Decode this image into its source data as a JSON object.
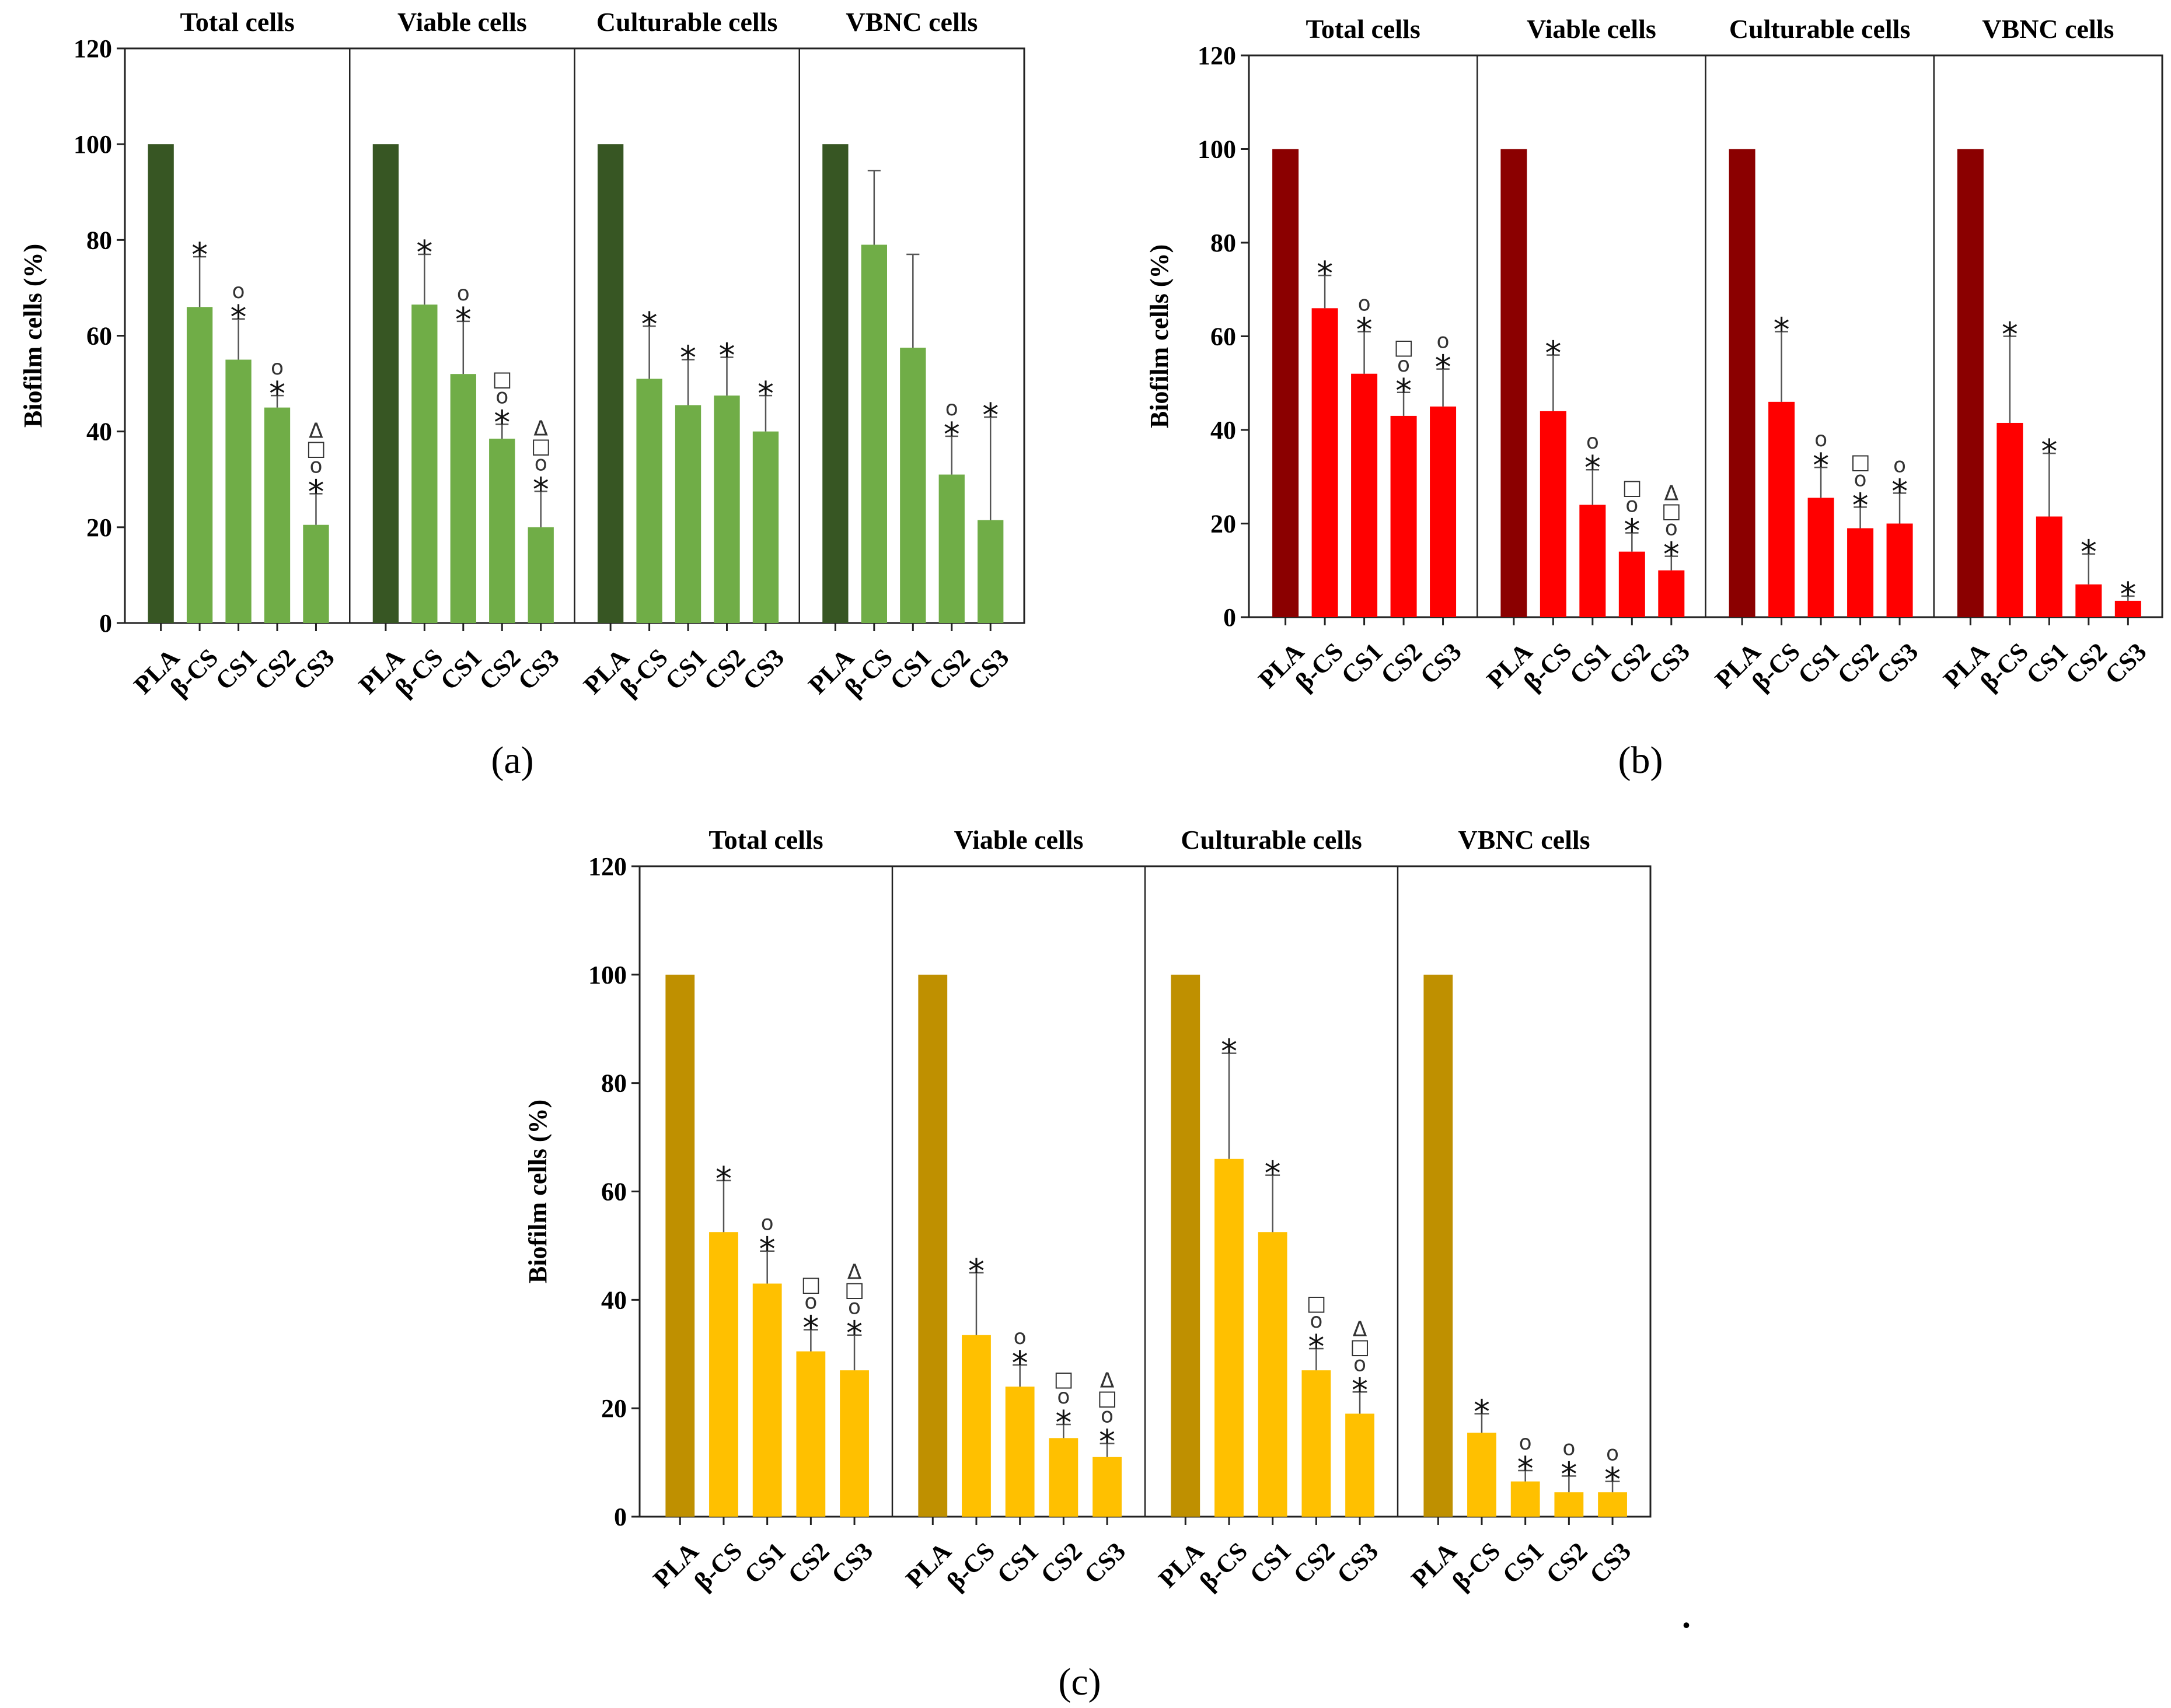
{
  "chart_data": [
    {
      "type": "bar",
      "panel_label": "(a)",
      "ylabel": "Biofilm cells (%)",
      "ylim": [
        0,
        120
      ],
      "yticks": [
        0,
        20,
        40,
        60,
        80,
        100,
        120
      ],
      "categories": [
        "PLA",
        "β-CS",
        "CS1",
        "CS2",
        "CS3"
      ],
      "colors": {
        "control": "#375623",
        "treated": "#70ad47"
      },
      "facets": [
        {
          "title": "Total cells",
          "values": [
            100,
            66,
            55,
            45,
            20.5
          ],
          "error_upper": [
            100,
            76.5,
            63.5,
            47.5,
            27
          ],
          "annotations": [
            [],
            [
              "*"
            ],
            [
              "o",
              "*"
            ],
            [
              "o",
              "*"
            ],
            [
              "Δ",
              "□",
              "o",
              "*"
            ]
          ]
        },
        {
          "title": "Viable cells",
          "values": [
            100,
            66.5,
            52,
            38.5,
            20
          ],
          "error_upper": [
            100,
            77,
            63,
            41.5,
            27.5
          ],
          "annotations": [
            [],
            [
              "*"
            ],
            [
              "o",
              "*"
            ],
            [
              "□",
              "o",
              "*"
            ],
            [
              "Δ",
              "□",
              "o",
              "*"
            ]
          ]
        },
        {
          "title": "Culturable cells",
          "values": [
            100,
            51,
            45.5,
            47.5,
            40
          ],
          "error_upper": [
            100,
            62,
            55,
            55.5,
            47.5
          ],
          "annotations": [
            [],
            [
              "*"
            ],
            [
              "*"
            ],
            [
              "*"
            ],
            [
              "*"
            ]
          ]
        },
        {
          "title": "VBNC cells",
          "values": [
            100,
            79,
            57.5,
            31,
            21.5
          ],
          "error_upper": [
            100,
            94.5,
            77,
            39,
            43
          ],
          "annotations": [
            [],
            [],
            [],
            [
              "o",
              "*"
            ],
            [
              "*"
            ]
          ]
        }
      ]
    },
    {
      "type": "bar",
      "panel_label": "(b)",
      "ylabel": "Biofilm cells (%)",
      "ylim": [
        0,
        120
      ],
      "yticks": [
        0,
        20,
        40,
        60,
        80,
        100,
        120
      ],
      "categories": [
        "PLA",
        "β-CS",
        "CS1",
        "CS2",
        "CS3"
      ],
      "colors": {
        "control": "#8b0000",
        "treated": "#ff0000"
      },
      "facets": [
        {
          "title": "Total cells",
          "values": [
            100,
            66,
            52,
            43,
            45
          ],
          "error_upper": [
            100,
            73,
            61,
            48,
            53
          ],
          "annotations": [
            [],
            [
              "*"
            ],
            [
              "o",
              "*"
            ],
            [
              "□",
              "o",
              "*"
            ],
            [
              "o",
              "*"
            ]
          ]
        },
        {
          "title": "Viable cells",
          "values": [
            100,
            44,
            24,
            14,
            10
          ],
          "error_upper": [
            100,
            56,
            31.5,
            18,
            13
          ],
          "annotations": [
            [],
            [
              "*"
            ],
            [
              "o",
              "*"
            ],
            [
              "□",
              "o",
              "*"
            ],
            [
              "Δ",
              "□",
              "o",
              "*"
            ]
          ]
        },
        {
          "title": "Culturable cells",
          "values": [
            100,
            46,
            25.5,
            19,
            20
          ],
          "error_upper": [
            100,
            61,
            32,
            23.5,
            26.5
          ],
          "annotations": [
            [],
            [
              "*"
            ],
            [
              "o",
              "*"
            ],
            [
              "□",
              "o",
              "*"
            ],
            [
              "o",
              "*"
            ]
          ]
        },
        {
          "title": "VBNC cells",
          "values": [
            100,
            41.5,
            21.5,
            7,
            3.5
          ],
          "error_upper": [
            100,
            60,
            35,
            13.5,
            4.5
          ],
          "annotations": [
            [],
            [
              "*"
            ],
            [
              "*"
            ],
            [
              "*"
            ],
            [
              "*"
            ]
          ]
        }
      ]
    },
    {
      "type": "bar",
      "panel_label": "(c)",
      "ylabel": "Biofilm cells (%)",
      "ylim": [
        0,
        120
      ],
      "yticks": [
        0,
        20,
        40,
        60,
        80,
        100,
        120
      ],
      "categories": [
        "PLA",
        "β-CS",
        "CS1",
        "CS2",
        "CS3"
      ],
      "colors": {
        "control": "#bf9000",
        "treated": "#ffc000"
      },
      "facets": [
        {
          "title": "Total cells",
          "values": [
            100,
            52.5,
            43,
            30.5,
            27
          ],
          "error_upper": [
            100,
            62,
            49,
            34.5,
            33.5
          ],
          "annotations": [
            [],
            [
              "*"
            ],
            [
              "o",
              "*"
            ],
            [
              "□",
              "o",
              "*"
            ],
            [
              "Δ",
              "□",
              "o",
              "*"
            ]
          ]
        },
        {
          "title": "Viable cells",
          "values": [
            100,
            33.5,
            24,
            14.5,
            11
          ],
          "error_upper": [
            100,
            45,
            28,
            17,
            13.5
          ],
          "annotations": [
            [],
            [
              "*"
            ],
            [
              "o",
              "*"
            ],
            [
              "□",
              "o",
              "*"
            ],
            [
              "Δ",
              "□",
              "o",
              "*"
            ]
          ]
        },
        {
          "title": "Culturable cells",
          "values": [
            100,
            66,
            52.5,
            27,
            19
          ],
          "error_upper": [
            100,
            85.5,
            63,
            31,
            23
          ],
          "annotations": [
            [],
            [
              "*"
            ],
            [
              "*"
            ],
            [
              "□",
              "o",
              "*"
            ],
            [
              "Δ",
              "□",
              "o",
              "*"
            ]
          ]
        },
        {
          "title": "VBNC cells",
          "values": [
            100,
            15.5,
            6.5,
            4.5,
            4.5
          ],
          "error_upper": [
            100,
            19,
            8.5,
            7.5,
            6.5
          ],
          "annotations": [
            [],
            [
              "*"
            ],
            [
              "o",
              "*"
            ],
            [
              "o",
              "*"
            ],
            [
              "o",
              "*"
            ]
          ]
        }
      ]
    }
  ],
  "trailing_mark": "."
}
